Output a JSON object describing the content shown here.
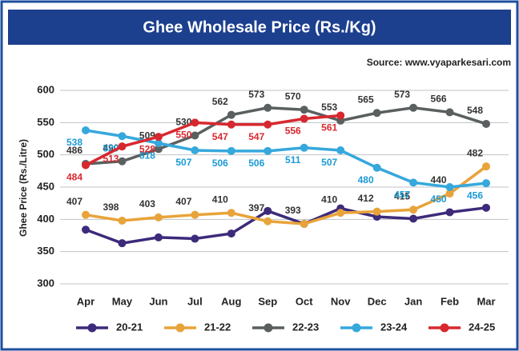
{
  "chart_data": {
    "type": "line",
    "title": "Ghee Wholesale Price (Rs./Kg)",
    "source": "Source: www.vyaparkesari.com",
    "y_label": "Ghee Price (Rs./Litre)",
    "categories": [
      "Apr",
      "May",
      "Jun",
      "Jul",
      "Aug",
      "Sep",
      "Oct",
      "Nov",
      "Dec",
      "Jan",
      "Feb",
      "Mar"
    ],
    "ylim": [
      300,
      600
    ],
    "yticks": [
      300,
      350,
      400,
      450,
      500,
      550,
      600
    ],
    "grid": true,
    "legend": "bottom",
    "series": [
      {
        "name": "20-21",
        "color": "#3d2a7a",
        "data_labels": false,
        "values": [
          384,
          363,
          372,
          370,
          378,
          413,
          393,
          417,
          404,
          401,
          411,
          418
        ]
      },
      {
        "name": "21-22",
        "color": "#e8a33a",
        "data_labels": true,
        "values": [
          407,
          398,
          403,
          407,
          410,
          397,
          393,
          410,
          412,
          415,
          440,
          482
        ]
      },
      {
        "name": "22-23",
        "color": "#5a5f5f",
        "data_labels": true,
        "values": [
          486,
          490,
          509,
          530,
          562,
          573,
          570,
          553,
          565,
          573,
          566,
          548
        ]
      },
      {
        "name": "23-24",
        "color": "#35a8dc",
        "data_labels": true,
        "values": [
          538,
          529,
          518,
          507,
          506,
          506,
          511,
          507,
          480,
          457,
          450,
          456
        ]
      },
      {
        "name": "24-25",
        "color": "#d7282f",
        "data_labels": true,
        "values": [
          484,
          513,
          528,
          550,
          547,
          547,
          556,
          561,
          null,
          null,
          null,
          null
        ]
      }
    ]
  }
}
